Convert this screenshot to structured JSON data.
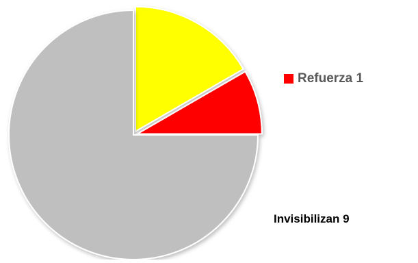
{
  "chart_data": {
    "type": "pie",
    "title": "",
    "series": [
      {
        "values": [
          9,
          1,
          2
        ],
        "colors": [
          "#bfbfbf",
          "#ff0000",
          "#ffff00"
        ]
      }
    ],
    "slices": [
      {
        "label": "Invisibilizan",
        "value": 9,
        "color": "#bfbfbf",
        "exploded": false
      },
      {
        "label": "Refuerza",
        "value": 1,
        "color": "#ff0000",
        "exploded": true
      },
      {
        "label": "",
        "value": 2,
        "color": "#ffff00",
        "exploded": true
      }
    ],
    "legend": {
      "placement": "right",
      "entries": [
        {
          "text": "Refuerza 1",
          "color": "#ff0000"
        }
      ]
    },
    "data_labels": {
      "invisibilizan": "Invisibilizan 9"
    }
  }
}
